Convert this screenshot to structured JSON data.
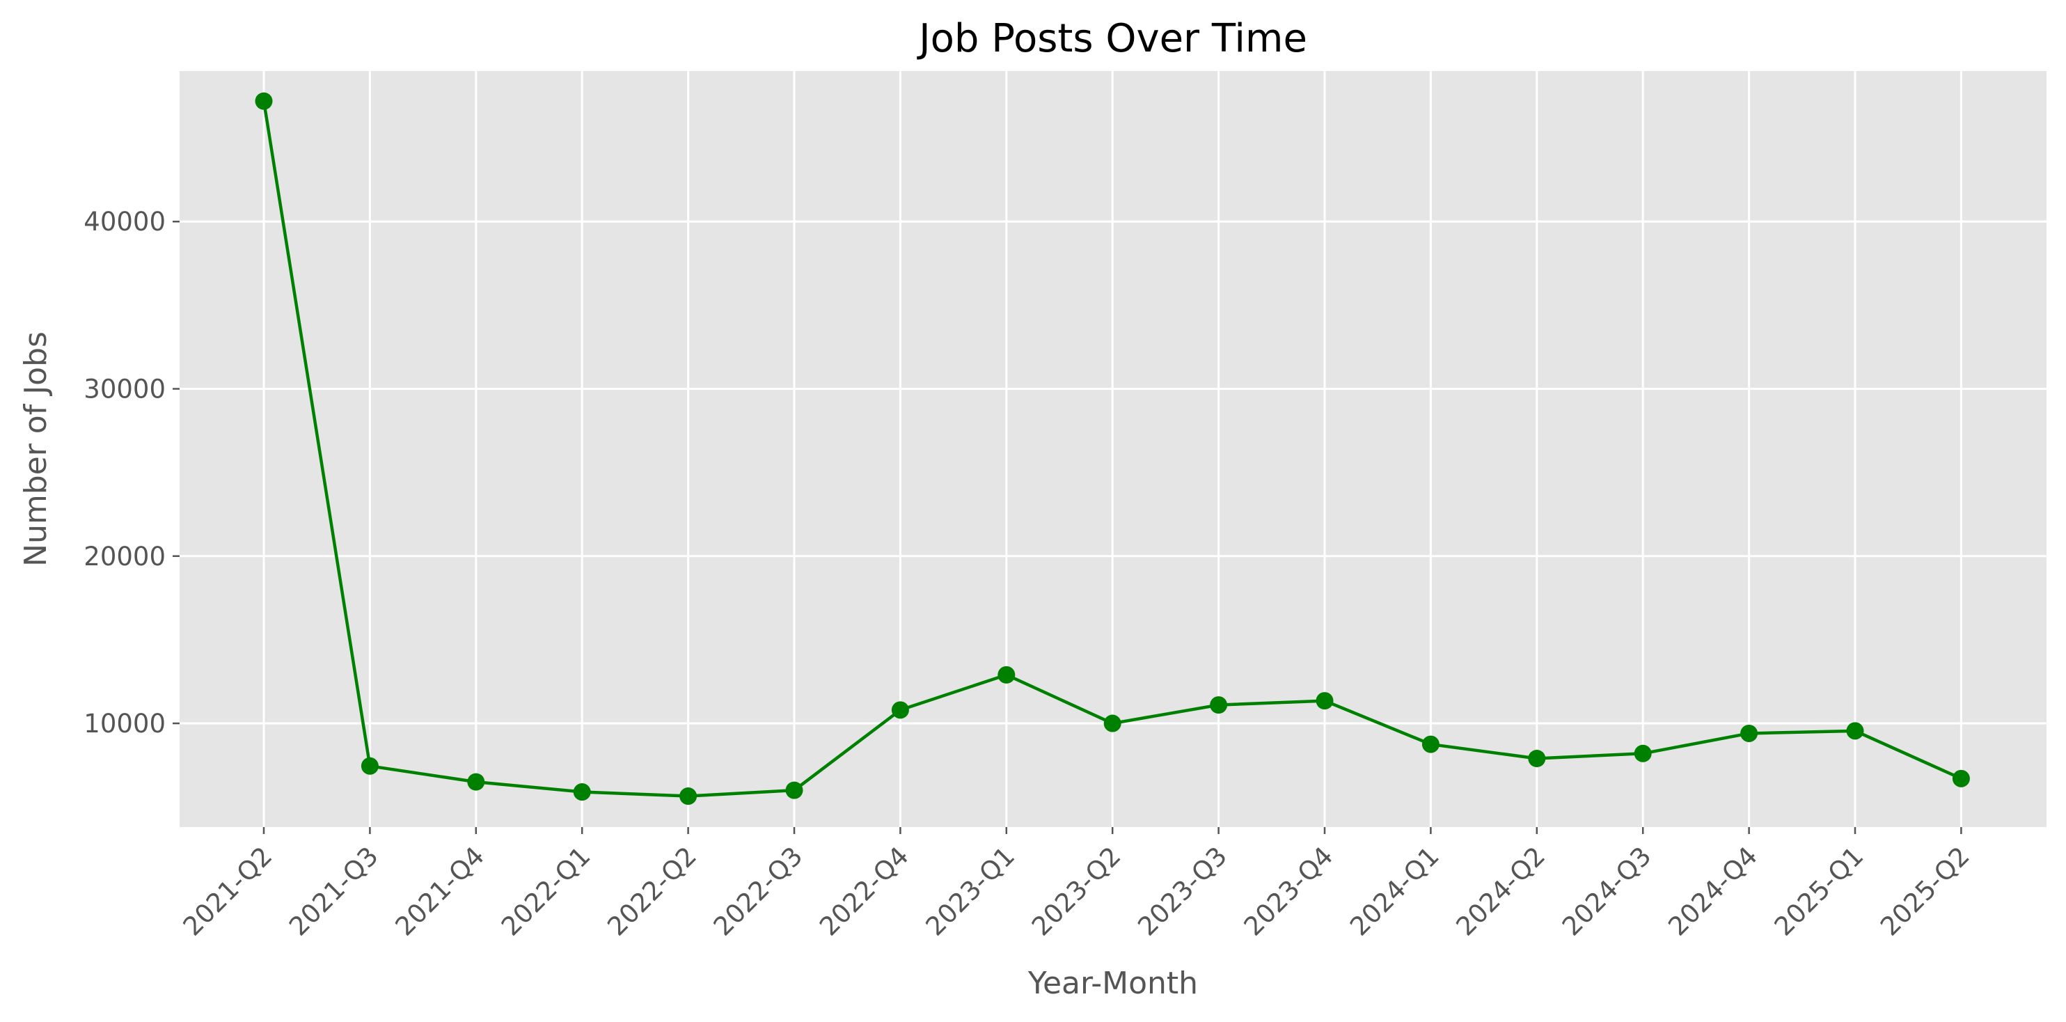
{
  "chart_data": {
    "type": "line",
    "title": "Job Posts Over Time",
    "xlabel": "Year-Month",
    "ylabel": "Number of Jobs",
    "categories": [
      "2021-Q2",
      "2021-Q3",
      "2021-Q4",
      "2022-Q1",
      "2022-Q2",
      "2022-Q3",
      "2022-Q4",
      "2023-Q1",
      "2023-Q2",
      "2023-Q3",
      "2023-Q4",
      "2024-Q1",
      "2024-Q2",
      "2024-Q3",
      "2024-Q4",
      "2025-Q1",
      "2025-Q2"
    ],
    "series": [
      {
        "values": [
          47200,
          7450,
          6500,
          5900,
          5650,
          6000,
          10800,
          12900,
          10000,
          11100,
          11350,
          8750,
          7900,
          8200,
          9400,
          9550,
          6700
        ],
        "color": "#008000"
      }
    ],
    "yticks": [
      10000,
      20000,
      30000,
      40000
    ],
    "ylim": [
      3800,
      49000
    ],
    "grid": true,
    "legend": "none",
    "background_color": "#e5e5e5",
    "grid_color": "#ffffff"
  }
}
